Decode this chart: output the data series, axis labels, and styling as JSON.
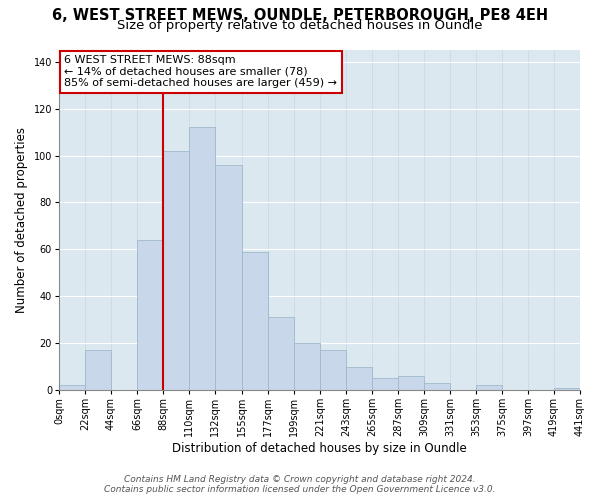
{
  "title": "6, WEST STREET MEWS, OUNDLE, PETERBOROUGH, PE8 4EH",
  "subtitle": "Size of property relative to detached houses in Oundle",
  "xlabel": "Distribution of detached houses by size in Oundle",
  "ylabel": "Number of detached properties",
  "bin_edges": [
    0,
    22,
    44,
    66,
    88,
    110,
    132,
    155,
    177,
    199,
    221,
    243,
    265,
    287,
    309,
    331,
    353,
    375,
    397,
    419,
    441
  ],
  "bar_heights": [
    2,
    17,
    0,
    64,
    102,
    112,
    96,
    59,
    31,
    20,
    17,
    10,
    5,
    6,
    3,
    0,
    2,
    0,
    0,
    1
  ],
  "bar_color": "#c8d8ea",
  "bar_edge_color": "#a0b8cc",
  "vline_x": 88,
  "vline_color": "#cc0000",
  "ylim": [
    0,
    145
  ],
  "yticks": [
    0,
    20,
    40,
    60,
    80,
    100,
    120,
    140
  ],
  "xtick_labels": [
    "0sqm",
    "22sqm",
    "44sqm",
    "66sqm",
    "88sqm",
    "110sqm",
    "132sqm",
    "155sqm",
    "177sqm",
    "199sqm",
    "221sqm",
    "243sqm",
    "265sqm",
    "287sqm",
    "309sqm",
    "331sqm",
    "353sqm",
    "375sqm",
    "397sqm",
    "419sqm",
    "441sqm"
  ],
  "annotation_title": "6 WEST STREET MEWS: 88sqm",
  "annotation_line1": "← 14% of detached houses are smaller (78)",
  "annotation_line2": "85% of semi-detached houses are larger (459) →",
  "footer_line1": "Contains HM Land Registry data © Crown copyright and database right 2024.",
  "footer_line2": "Contains public sector information licensed under the Open Government Licence v3.0.",
  "title_fontsize": 10.5,
  "subtitle_fontsize": 9.5,
  "axis_label_fontsize": 8.5,
  "tick_fontsize": 7,
  "annotation_fontsize": 8,
  "footer_fontsize": 6.5,
  "grid_color": "#c8d4e0",
  "bg_color": "#dce8f0"
}
